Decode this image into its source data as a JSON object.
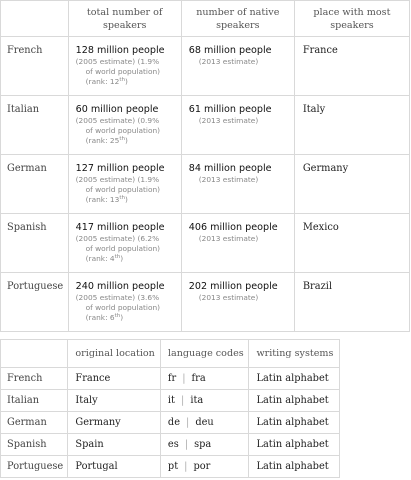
{
  "table1": {
    "headers": [
      "",
      "total number of speakers",
      "number of native speakers",
      "place with most speakers"
    ],
    "rows": [
      {
        "language": "French",
        "total": "128 million people",
        "total_note_a": "(2005 estimate) (1.9%",
        "total_note_b": "of world population)",
        "total_rank_prefix": "(rank: 12",
        "total_rank_sup": "th",
        "total_rank_suffix": ")",
        "native": "68 million people",
        "native_note": "(2013 estimate)",
        "place": "France"
      },
      {
        "language": "Italian",
        "total": "60 million people",
        "total_note_a": "(2005 estimate) (0.9%",
        "total_note_b": "of world population)",
        "total_rank_prefix": "(rank: 25",
        "total_rank_sup": "th",
        "total_rank_suffix": ")",
        "native": "61 million people",
        "native_note": "(2013 estimate)",
        "place": "Italy"
      },
      {
        "language": "German",
        "total": "127 million people",
        "total_note_a": "(2005 estimate) (1.9%",
        "total_note_b": "of world population)",
        "total_rank_prefix": "(rank: 13",
        "total_rank_sup": "th",
        "total_rank_suffix": ")",
        "native": "84 million people",
        "native_note": "(2013 estimate)",
        "place": "Germany"
      },
      {
        "language": "Spanish",
        "total": "417 million people",
        "total_note_a": "(2005 estimate) (6.2%",
        "total_note_b": "of world population)",
        "total_rank_prefix": "(rank: 4",
        "total_rank_sup": "th",
        "total_rank_suffix": ")",
        "native": "406 million people",
        "native_note": "(2013 estimate)",
        "place": "Mexico"
      },
      {
        "language": "Portuguese",
        "total": "240 million people",
        "total_note_a": "(2005 estimate) (3.6%",
        "total_note_b": "of world population)",
        "total_rank_prefix": "(rank: 6",
        "total_rank_sup": "th",
        "total_rank_suffix": ")",
        "native": "202 million people",
        "native_note": "(2013 estimate)",
        "place": "Brazil"
      }
    ]
  },
  "table2": {
    "headers": [
      "",
      "original location",
      "language codes",
      "writing systems"
    ],
    "code_separator": "|",
    "rows": [
      {
        "language": "French",
        "location": "France",
        "code1": "fr",
        "code2": "fra",
        "writing": "Latin alphabet"
      },
      {
        "language": "Italian",
        "location": "Italy",
        "code1": "it",
        "code2": "ita",
        "writing": "Latin alphabet"
      },
      {
        "language": "German",
        "location": "Germany",
        "code1": "de",
        "code2": "deu",
        "writing": "Latin alphabet"
      },
      {
        "language": "Spanish",
        "location": "Spain",
        "code1": "es",
        "code2": "spa",
        "writing": "Latin alphabet"
      },
      {
        "language": "Portuguese",
        "location": "Portugal",
        "code1": "pt",
        "code2": "por",
        "writing": "Latin alphabet"
      }
    ]
  }
}
